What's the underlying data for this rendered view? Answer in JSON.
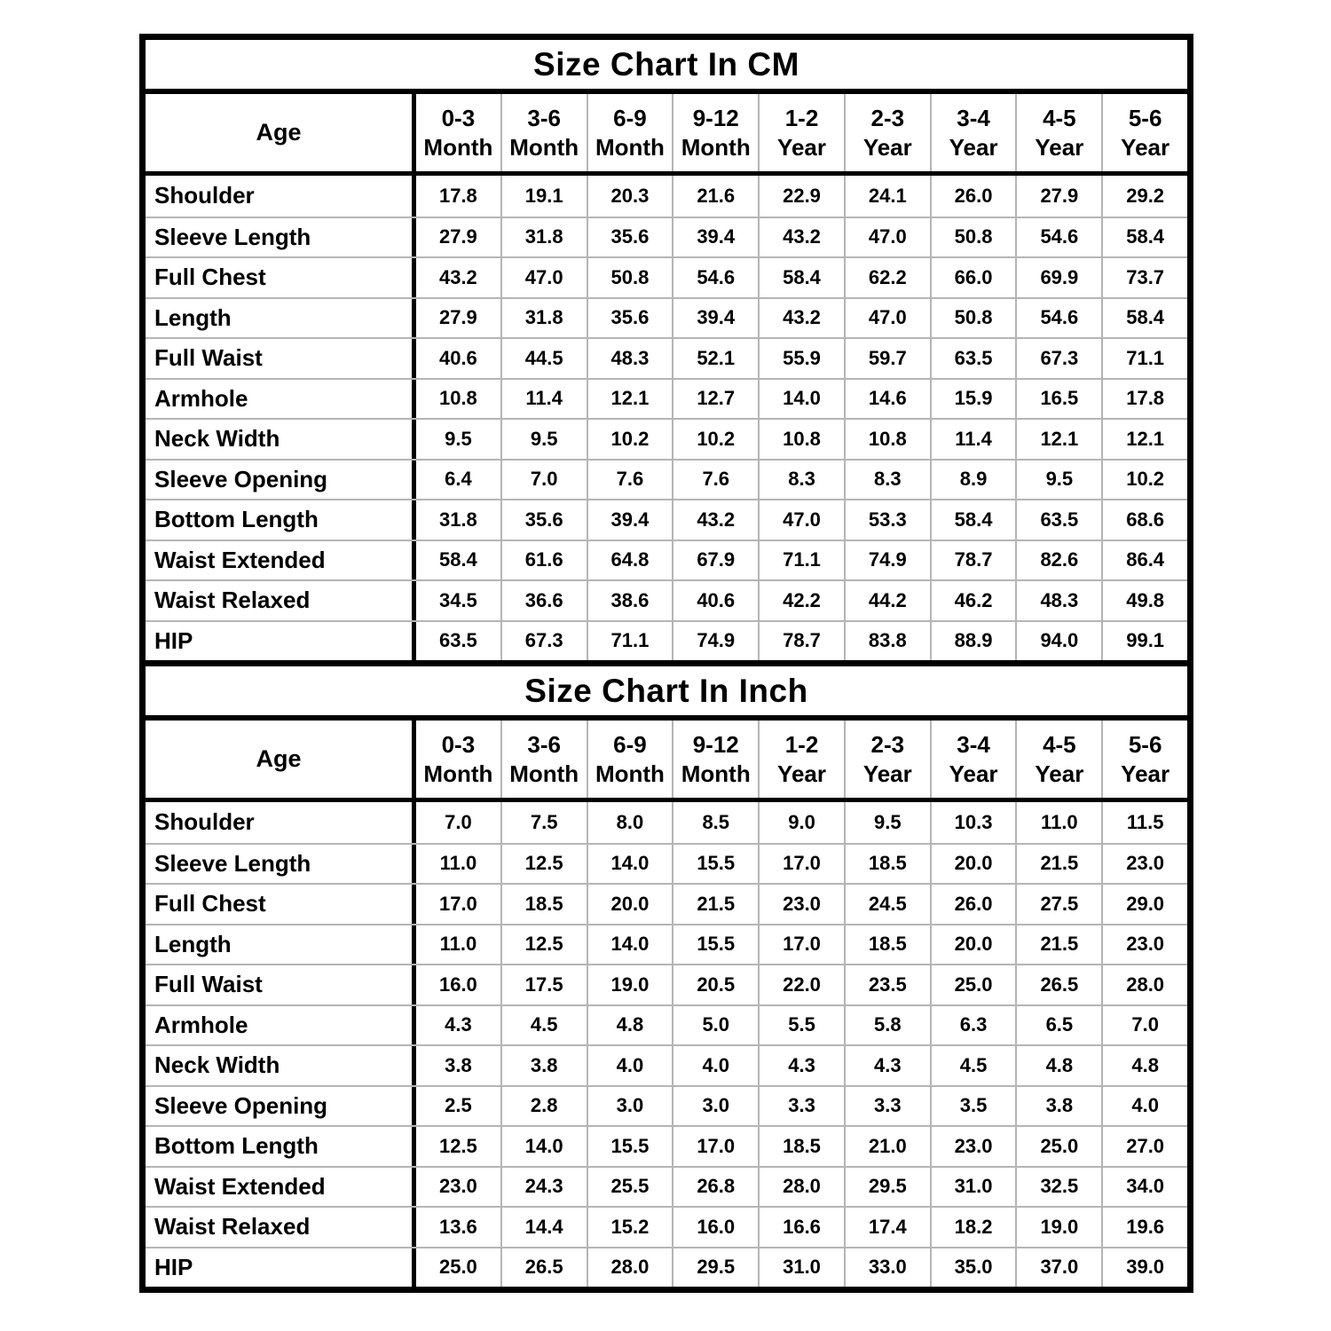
{
  "colors": {
    "background": "#ffffff",
    "text": "#000000",
    "heavy_border": "#000000",
    "grid_line": "#b5b5b5"
  },
  "tables": [
    {
      "id": "cm",
      "title": "Size Chart In CM",
      "age_label": "Age",
      "columns": [
        {
          "range": "0-3",
          "unit": "Month"
        },
        {
          "range": "3-6",
          "unit": "Month"
        },
        {
          "range": "6-9",
          "unit": "Month"
        },
        {
          "range": "9-12",
          "unit": "Month"
        },
        {
          "range": "1-2",
          "unit": "Year"
        },
        {
          "range": "2-3",
          "unit": "Year"
        },
        {
          "range": "3-4",
          "unit": "Year"
        },
        {
          "range": "4-5",
          "unit": "Year"
        },
        {
          "range": "5-6",
          "unit": "Year"
        }
      ],
      "rows": [
        {
          "label": "Shoulder",
          "values": [
            "17.8",
            "19.1",
            "20.3",
            "21.6",
            "22.9",
            "24.1",
            "26.0",
            "27.9",
            "29.2"
          ]
        },
        {
          "label": "Sleeve Length",
          "values": [
            "27.9",
            "31.8",
            "35.6",
            "39.4",
            "43.2",
            "47.0",
            "50.8",
            "54.6",
            "58.4"
          ]
        },
        {
          "label": "Full Chest",
          "values": [
            "43.2",
            "47.0",
            "50.8",
            "54.6",
            "58.4",
            "62.2",
            "66.0",
            "69.9",
            "73.7"
          ]
        },
        {
          "label": "Length",
          "values": [
            "27.9",
            "31.8",
            "35.6",
            "39.4",
            "43.2",
            "47.0",
            "50.8",
            "54.6",
            "58.4"
          ]
        },
        {
          "label": "Full Waist",
          "values": [
            "40.6",
            "44.5",
            "48.3",
            "52.1",
            "55.9",
            "59.7",
            "63.5",
            "67.3",
            "71.1"
          ]
        },
        {
          "label": "Armhole",
          "values": [
            "10.8",
            "11.4",
            "12.1",
            "12.7",
            "14.0",
            "14.6",
            "15.9",
            "16.5",
            "17.8"
          ]
        },
        {
          "label": "Neck Width",
          "values": [
            "9.5",
            "9.5",
            "10.2",
            "10.2",
            "10.8",
            "10.8",
            "11.4",
            "12.1",
            "12.1"
          ]
        },
        {
          "label": "Sleeve Opening",
          "values": [
            "6.4",
            "7.0",
            "7.6",
            "7.6",
            "8.3",
            "8.3",
            "8.9",
            "9.5",
            "10.2"
          ]
        },
        {
          "label": "Bottom Length",
          "values": [
            "31.8",
            "35.6",
            "39.4",
            "43.2",
            "47.0",
            "53.3",
            "58.4",
            "63.5",
            "68.6"
          ]
        },
        {
          "label": "Waist Extended",
          "values": [
            "58.4",
            "61.6",
            "64.8",
            "67.9",
            "71.1",
            "74.9",
            "78.7",
            "82.6",
            "86.4"
          ]
        },
        {
          "label": "Waist Relaxed",
          "values": [
            "34.5",
            "36.6",
            "38.6",
            "40.6",
            "42.2",
            "44.2",
            "46.2",
            "48.3",
            "49.8"
          ]
        },
        {
          "label": "HIP",
          "values": [
            "63.5",
            "67.3",
            "71.1",
            "74.9",
            "78.7",
            "83.8",
            "88.9",
            "94.0",
            "99.1"
          ]
        }
      ]
    },
    {
      "id": "inch",
      "title": "Size Chart In Inch",
      "age_label": "Age",
      "columns": [
        {
          "range": "0-3",
          "unit": "Month"
        },
        {
          "range": "3-6",
          "unit": "Month"
        },
        {
          "range": "6-9",
          "unit": "Month"
        },
        {
          "range": "9-12",
          "unit": "Month"
        },
        {
          "range": "1-2",
          "unit": "Year"
        },
        {
          "range": "2-3",
          "unit": "Year"
        },
        {
          "range": "3-4",
          "unit": "Year"
        },
        {
          "range": "4-5",
          "unit": "Year"
        },
        {
          "range": "5-6",
          "unit": "Year"
        }
      ],
      "rows": [
        {
          "label": "Shoulder",
          "values": [
            "7.0",
            "7.5",
            "8.0",
            "8.5",
            "9.0",
            "9.5",
            "10.3",
            "11.0",
            "11.5"
          ]
        },
        {
          "label": "Sleeve Length",
          "values": [
            "11.0",
            "12.5",
            "14.0",
            "15.5",
            "17.0",
            "18.5",
            "20.0",
            "21.5",
            "23.0"
          ]
        },
        {
          "label": "Full Chest",
          "values": [
            "17.0",
            "18.5",
            "20.0",
            "21.5",
            "23.0",
            "24.5",
            "26.0",
            "27.5",
            "29.0"
          ]
        },
        {
          "label": "Length",
          "values": [
            "11.0",
            "12.5",
            "14.0",
            "15.5",
            "17.0",
            "18.5",
            "20.0",
            "21.5",
            "23.0"
          ]
        },
        {
          "label": "Full Waist",
          "values": [
            "16.0",
            "17.5",
            "19.0",
            "20.5",
            "22.0",
            "23.5",
            "25.0",
            "26.5",
            "28.0"
          ]
        },
        {
          "label": "Armhole",
          "values": [
            "4.3",
            "4.5",
            "4.8",
            "5.0",
            "5.5",
            "5.8",
            "6.3",
            "6.5",
            "7.0"
          ]
        },
        {
          "label": "Neck Width",
          "values": [
            "3.8",
            "3.8",
            "4.0",
            "4.0",
            "4.3",
            "4.3",
            "4.5",
            "4.8",
            "4.8"
          ]
        },
        {
          "label": "Sleeve Opening",
          "values": [
            "2.5",
            "2.8",
            "3.0",
            "3.0",
            "3.3",
            "3.3",
            "3.5",
            "3.8",
            "4.0"
          ]
        },
        {
          "label": "Bottom Length",
          "values": [
            "12.5",
            "14.0",
            "15.5",
            "17.0",
            "18.5",
            "21.0",
            "23.0",
            "25.0",
            "27.0"
          ]
        },
        {
          "label": "Waist Extended",
          "values": [
            "23.0",
            "24.3",
            "25.5",
            "26.8",
            "28.0",
            "29.5",
            "31.0",
            "32.5",
            "34.0"
          ]
        },
        {
          "label": "Waist Relaxed",
          "values": [
            "13.6",
            "14.4",
            "15.2",
            "16.0",
            "16.6",
            "17.4",
            "18.2",
            "19.0",
            "19.6"
          ]
        },
        {
          "label": "HIP",
          "values": [
            "25.0",
            "26.5",
            "28.0",
            "29.5",
            "31.0",
            "33.0",
            "35.0",
            "37.0",
            "39.0"
          ]
        }
      ]
    }
  ]
}
